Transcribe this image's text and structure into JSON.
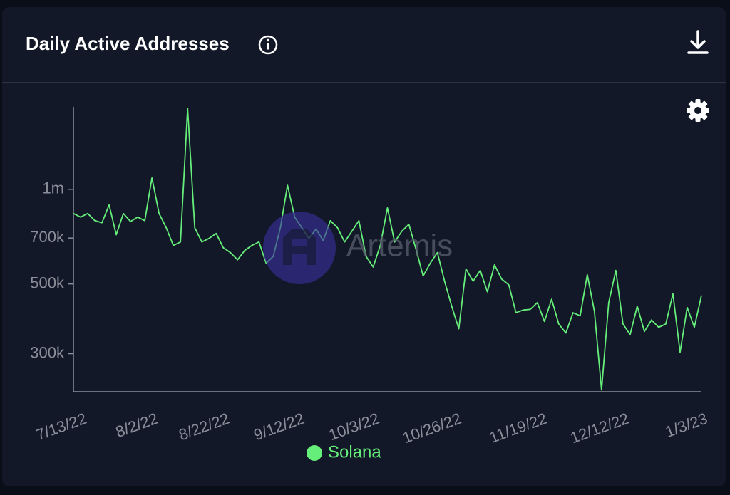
{
  "chart_data": {
    "type": "line",
    "title": "Daily Active Addresses",
    "watermark": "Artemis",
    "y_scale": "log",
    "grid": false,
    "legend": "bottom",
    "x": [
      "7/13/22",
      "7/15/22",
      "7/17/22",
      "7/19/22",
      "7/21/22",
      "7/23/22",
      "7/25/22",
      "7/27/22",
      "7/29/22",
      "7/31/22",
      "8/2/22",
      "8/4/22",
      "8/6/22",
      "8/8/22",
      "8/10/22",
      "8/12/22",
      "8/14/22",
      "8/16/22",
      "8/18/22",
      "8/20/22",
      "8/22/22",
      "8/24/22",
      "8/26/22",
      "8/28/22",
      "8/30/22",
      "9/1/22",
      "9/3/22",
      "9/5/22",
      "9/7/22",
      "9/9/22",
      "9/11/22",
      "9/13/22",
      "9/15/22",
      "9/17/22",
      "9/19/22",
      "9/21/22",
      "9/23/22",
      "9/25/22",
      "9/27/22",
      "9/29/22",
      "10/1/22",
      "10/3/22",
      "10/5/22",
      "10/7/22",
      "10/9/22",
      "10/11/22",
      "10/13/22",
      "10/15/22",
      "10/17/22",
      "10/19/22",
      "10/21/22",
      "10/23/22",
      "10/25/22",
      "10/27/22",
      "10/29/22",
      "10/31/22",
      "11/2/22",
      "11/4/22",
      "11/6/22",
      "11/8/22",
      "11/10/22",
      "11/12/22",
      "11/14/22",
      "11/16/22",
      "11/18/22",
      "11/20/22",
      "11/22/22",
      "11/24/22",
      "11/26/22",
      "11/28/22",
      "11/30/22",
      "12/2/22",
      "12/4/22",
      "12/6/22",
      "12/8/22",
      "12/10/22",
      "12/12/22",
      "12/14/22",
      "12/16/22",
      "12/18/22",
      "12/20/22",
      "12/22/22",
      "12/24/22",
      "12/26/22",
      "12/28/22",
      "12/30/22",
      "1/1/23",
      "1/3/23",
      "1/5/23"
    ],
    "series": [
      {
        "name": "Solana",
        "color": "#66ee7a",
        "values": [
          838000,
          816000,
          838000,
          795000,
          783000,
          892000,
          717000,
          838000,
          790000,
          816000,
          795000,
          1087000,
          838000,
          755000,
          663000,
          680000,
          1810000,
          755000,
          680000,
          698000,
          724000,
          652000,
          629000,
          597000,
          639000,
          663000,
          680000,
          582000,
          612000,
          755000,
          1030000,
          816000,
          755000,
          698000,
          747000,
          687000,
          795000,
          755000,
          680000,
          735000,
          795000,
          612000,
          566000,
          663000,
          873000,
          680000,
          735000,
          774000,
          645000,
          530000,
          582000,
          629000,
          510000,
          425000,
          360000,
          558000,
          510000,
          552000,
          472000,
          575000,
          518000,
          497000,
          405000,
          413000,
          415000,
          436000,
          380000,
          447000,
          373000,
          349000,
          405000,
          396000,
          535000,
          409000,
          230000,
          436000,
          552000,
          373000,
          345000,
          425000,
          353000,
          384000,
          364000,
          373000,
          465000,
          303000,
          421000,
          364000,
          460000
        ]
      }
    ],
    "ylim": [
      227000,
      1830000
    ],
    "yticks": [
      {
        "value": 300000,
        "label": "300k"
      },
      {
        "value": 500000,
        "label": "500k"
      },
      {
        "value": 700000,
        "label": "700k"
      },
      {
        "value": 1000000,
        "label": "1m"
      }
    ],
    "xticks": [
      "7/13/22",
      "8/2/22",
      "8/22/22",
      "9/12/22",
      "10/3/22",
      "10/26/22",
      "11/19/22",
      "12/12/22",
      "1/3/23"
    ]
  }
}
